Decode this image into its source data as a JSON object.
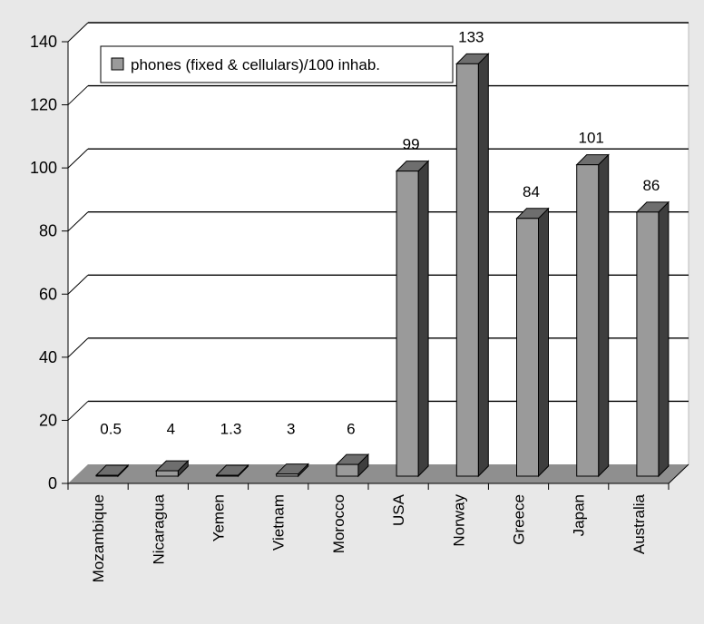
{
  "chart_data": {
    "type": "bar",
    "categories": [
      "Mozambique",
      "Nicaragua",
      "Yemen",
      "Vietnam",
      "Morocco",
      "USA",
      "Norway",
      "Greece",
      "Japan",
      "Australia"
    ],
    "series": [
      {
        "name": "phones (fixed & cellulars)/100 inhab.",
        "values": [
          0.5,
          4,
          1.3,
          3,
          6,
          99,
          133,
          84,
          101,
          86
        ],
        "labels": [
          "0.5",
          "4",
          "1.3",
          "3",
          "6",
          "99",
          "133",
          "84",
          "101",
          "86"
        ]
      }
    ],
    "yticks": [
      "0",
      "20",
      "40",
      "60",
      "80",
      "100",
      "120",
      "140"
    ],
    "ylim": [
      0,
      140
    ],
    "grid": true,
    "legend_position": "top-left",
    "title": "",
    "xlabel": "",
    "ylabel": "",
    "colors": {
      "page_background": "#e8e8e8",
      "plot_background": "#ffffff",
      "bar_front": "#9a9a9a",
      "bar_top": "#6e6e6e",
      "bar_side": "#3e3e3e",
      "floor": "#8f8f8f",
      "gridline": "#000000"
    }
  }
}
